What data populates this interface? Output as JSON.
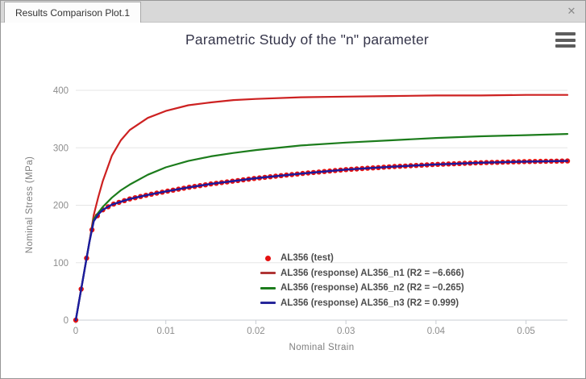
{
  "window": {
    "tab_label": "Results Comparison Plot.1",
    "close_glyph": "✕"
  },
  "chart_data": {
    "type": "line",
    "title": "Parametric Study of the \"n\" parameter",
    "xlabel": "Nominal Strain",
    "ylabel": "Nominal Stress (MPa)",
    "xlim": [
      0,
      0.0546
    ],
    "ylim": [
      0,
      400
    ],
    "grid": "horizontal-only",
    "xticks": [
      0,
      0.01,
      0.02,
      0.03,
      0.04,
      0.05
    ],
    "xtick_labels": [
      "0",
      "0.01",
      "0.02",
      "0.03",
      "0.04",
      "0.05"
    ],
    "yticks": [
      0,
      100,
      200,
      300,
      400
    ],
    "ytick_labels": [
      "0",
      "100",
      "200",
      "300",
      "400"
    ],
    "x": [
      0,
      0.0005,
      0.001,
      0.0015,
      0.002,
      0.0025,
      0.003,
      0.004,
      0.005,
      0.006,
      0.008,
      0.01,
      0.0125,
      0.015,
      0.0175,
      0.02,
      0.025,
      0.03,
      0.035,
      0.04,
      0.045,
      0.05,
      0.0546
    ],
    "series": [
      {
        "name": "AL356 (test)",
        "type": "scatter",
        "color": "#e41111",
        "marker_step": 0.0006,
        "values": [
          0,
          45,
          90,
          135,
          172,
          184,
          192,
          201,
          206,
          211,
          218,
          224,
          231,
          237,
          242,
          247,
          255,
          262,
          267,
          271,
          274,
          276,
          277
        ]
      },
      {
        "name": "AL356 (response) AL356_n1",
        "type": "line",
        "color": "#cd2121",
        "r2": -6.666,
        "values": [
          0,
          45,
          90,
          135,
          183,
          214,
          242,
          286,
          313,
          331,
          352,
          364,
          374,
          379,
          383,
          385,
          388,
          389,
          390,
          391,
          391,
          392,
          392
        ]
      },
      {
        "name": "AL356 (response) AL356_n2",
        "type": "line",
        "color": "#1c7c1c",
        "r2": -0.265,
        "values": [
          0,
          45,
          90,
          135,
          176,
          187,
          197,
          213,
          226,
          236,
          253,
          266,
          277,
          285,
          291,
          296,
          304,
          309,
          313,
          317,
          320,
          322,
          324
        ]
      },
      {
        "name": "AL356 (response) AL356_n3",
        "type": "line",
        "color": "#1b1b9e",
        "r2": 0.999,
        "values": [
          0,
          45,
          90,
          135,
          172,
          184,
          192,
          201,
          206,
          211,
          218,
          224,
          231,
          237,
          242,
          247,
          255,
          262,
          267,
          271,
          274,
          276,
          277
        ]
      }
    ],
    "legend": [
      {
        "label": "AL356 (test)",
        "marker": "dot",
        "color": "#e41111"
      },
      {
        "label": "AL356 (response) AL356_n1 (R2 = −6.666)",
        "marker": "line",
        "color": "#b03636"
      },
      {
        "label": "AL356 (response) AL356_n2 (R2 = −0.265)",
        "marker": "line",
        "color": "#1c7c1c"
      },
      {
        "label": "AL356 (response) AL356_n3 (R2 = 0.999)",
        "marker": "line",
        "color": "#26269a"
      }
    ],
    "legend_position": "inside-lower-middle",
    "colors": {
      "grid_line": "#e5e5e5",
      "axis_line": "#c9cdd3",
      "tick_text": "#8d8d8d",
      "title_text": "#35354a"
    }
  }
}
